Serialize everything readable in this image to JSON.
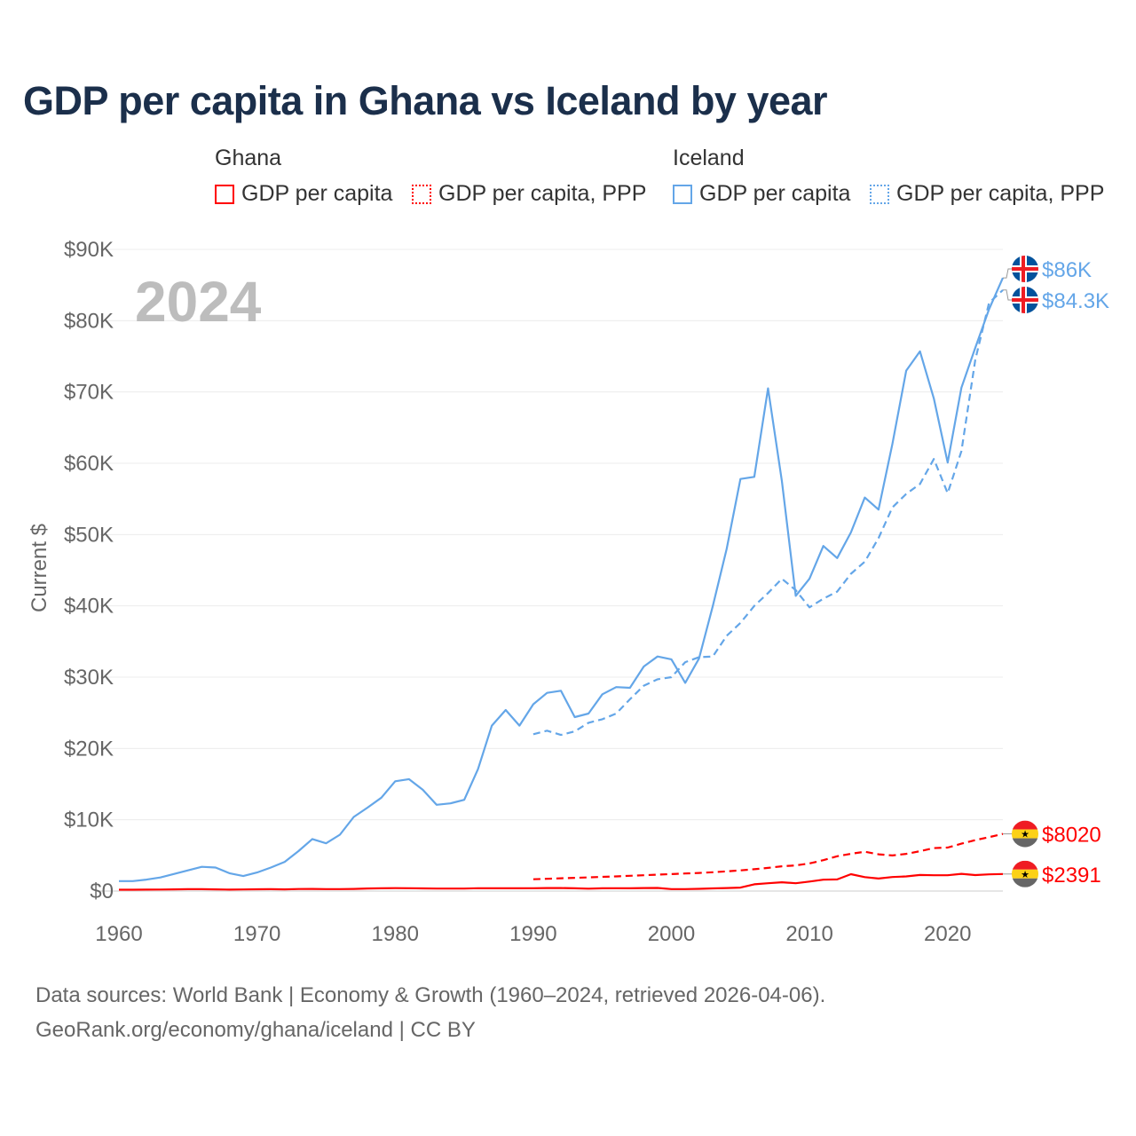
{
  "chart_data": {
    "type": "line",
    "title": "GDP per capita in Ghana vs Iceland by year",
    "xlabel": "",
    "ylabel": "Current $",
    "xlim": [
      1960,
      2024
    ],
    "ylim": [
      0,
      90000
    ],
    "x_ticks": [
      "1960",
      "1970",
      "1980",
      "1990",
      "2000",
      "2010",
      "2020"
    ],
    "y_ticks": [
      "$0",
      "$10K",
      "$20K",
      "$30K",
      "$40K",
      "$50K",
      "$60K",
      "$70K",
      "$80K",
      "$90K"
    ],
    "grid": "horizontal",
    "year_watermark": "2024",
    "legend_groups": [
      {
        "name": "Ghana",
        "items": [
          "GDP per capita",
          "GDP per capita, PPP"
        ]
      },
      {
        "name": "Iceland",
        "items": [
          "GDP per capita",
          "GDP per capita, PPP"
        ]
      }
    ],
    "series": [
      {
        "name": "Ghana GDP per capita",
        "country": "Ghana",
        "color": "#ff0000",
        "style": "solid",
        "start": 1960,
        "values": [
          183,
          190,
          197,
          213,
          232,
          258,
          265,
          233,
          203,
          228,
          253,
          258,
          240,
          285,
          302,
          280,
          270,
          300,
          360,
          390,
          410,
          400,
          370,
          350,
          350,
          350,
          400,
          380,
          380,
          380,
          400,
          420,
          420,
          380,
          330,
          380,
          400,
          390,
          420,
          430,
          270,
          280,
          310,
          370,
          420,
          490,
          940,
          1100,
          1230,
          1090,
          1330,
          1590,
          1630,
          2360,
          1960,
          1760,
          1970,
          2060,
          2250,
          2210,
          2210,
          2410,
          2240,
          2340,
          2391
        ],
        "end_label": "$2391",
        "flag": "ghana-flag"
      },
      {
        "name": "Ghana GDP per capita, PPP",
        "country": "Ghana",
        "color": "#ff0000",
        "style": "dashed",
        "start": 1990,
        "values": [
          1650,
          1720,
          1790,
          1860,
          1920,
          1990,
          2060,
          2140,
          2220,
          2300,
          2380,
          2460,
          2540,
          2640,
          2760,
          2900,
          3060,
          3250,
          3470,
          3600,
          3870,
          4330,
          4880,
          5230,
          5510,
          5150,
          4990,
          5210,
          5590,
          6030,
          6100,
          6650,
          7150,
          7550,
          8020
        ],
        "end_label": "$8020",
        "flag": "ghana-flag"
      },
      {
        "name": "Iceland GDP per capita",
        "country": "Iceland",
        "color": "#64a6e8",
        "style": "solid",
        "start": 1960,
        "values": [
          1400,
          1400,
          1600,
          1900,
          2400,
          2900,
          3400,
          3300,
          2500,
          2100,
          2600,
          3300,
          4100,
          5600,
          7300,
          6700,
          7900,
          10400,
          11700,
          13100,
          15400,
          15700,
          14200,
          12100,
          12300,
          12800,
          17100,
          23200,
          25400,
          23200,
          26200,
          27800,
          28100,
          24400,
          24900,
          27600,
          28600,
          28500,
          31500,
          32900,
          32500,
          29200,
          32600,
          40000,
          48000,
          57800,
          58100,
          70500,
          57500,
          41400,
          43800,
          48400,
          46700,
          50300,
          55200,
          53500,
          62700,
          73000,
          75700,
          69100,
          60100,
          70600,
          76200,
          81600,
          86000
        ],
        "end_label": "$86K",
        "flag": "iceland-flag"
      },
      {
        "name": "Iceland GDP per capita, PPP",
        "country": "Iceland",
        "color": "#64a6e8",
        "style": "dashed",
        "start": 1990,
        "values": [
          22000,
          22500,
          21900,
          22400,
          23600,
          24100,
          24900,
          26900,
          28800,
          29700,
          30000,
          32100,
          32800,
          32900,
          35800,
          37600,
          40000,
          41800,
          43800,
          42200,
          39800,
          41000,
          42000,
          44500,
          46200,
          49500,
          53800,
          55700,
          57100,
          60600,
          55800,
          61700,
          74500,
          82500,
          84300
        ],
        "end_label": "$84.3K",
        "flag": "iceland-flag"
      }
    ]
  },
  "legend": {
    "ghana": {
      "title": "Ghana",
      "gdp": "GDP per capita",
      "ppp": "GDP per capita, PPP",
      "color": "#ff0000"
    },
    "iceland": {
      "title": "Iceland",
      "gdp": "GDP per capita",
      "ppp": "GDP per capita, PPP",
      "color": "#64a6e8"
    }
  },
  "footer": {
    "line1": "Data sources: World Bank | Economy & Growth (1960–2024, retrieved 2026-04-06).",
    "line2": "GeoRank.org/economy/ghana/iceland | CC BY"
  }
}
